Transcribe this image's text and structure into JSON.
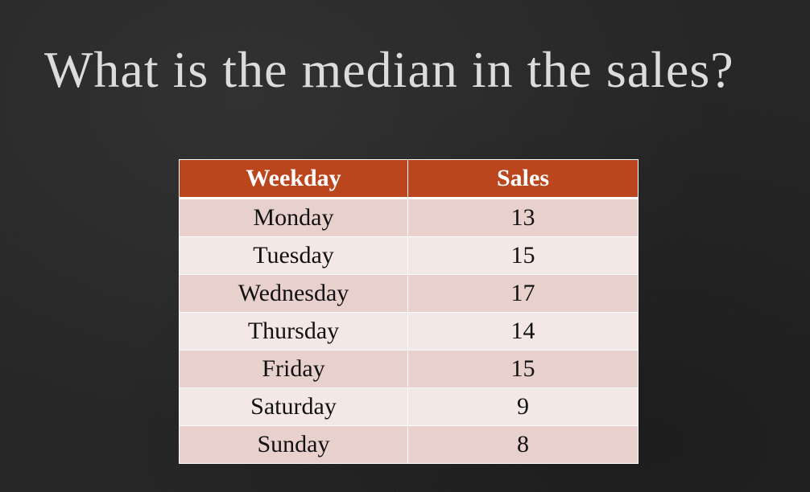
{
  "slide": {
    "title": "What is the median in the sales?"
  },
  "table": {
    "headers": [
      "Weekday",
      "Sales"
    ],
    "rows": [
      {
        "weekday": "Monday",
        "sales": "13"
      },
      {
        "weekday": "Tuesday",
        "sales": "15"
      },
      {
        "weekday": "Wednesday",
        "sales": "17"
      },
      {
        "weekday": "Thursday",
        "sales": "14"
      },
      {
        "weekday": "Friday",
        "sales": "15"
      },
      {
        "weekday": "Saturday",
        "sales": "9"
      },
      {
        "weekday": "Sunday",
        "sales": "8"
      }
    ]
  },
  "colors": {
    "background": "#262626",
    "title_text": "#dcdcdc",
    "header_fill": "#bb461e",
    "row_fill_dark": "#e8d0cc",
    "row_fill_light": "#f4e8e6"
  }
}
